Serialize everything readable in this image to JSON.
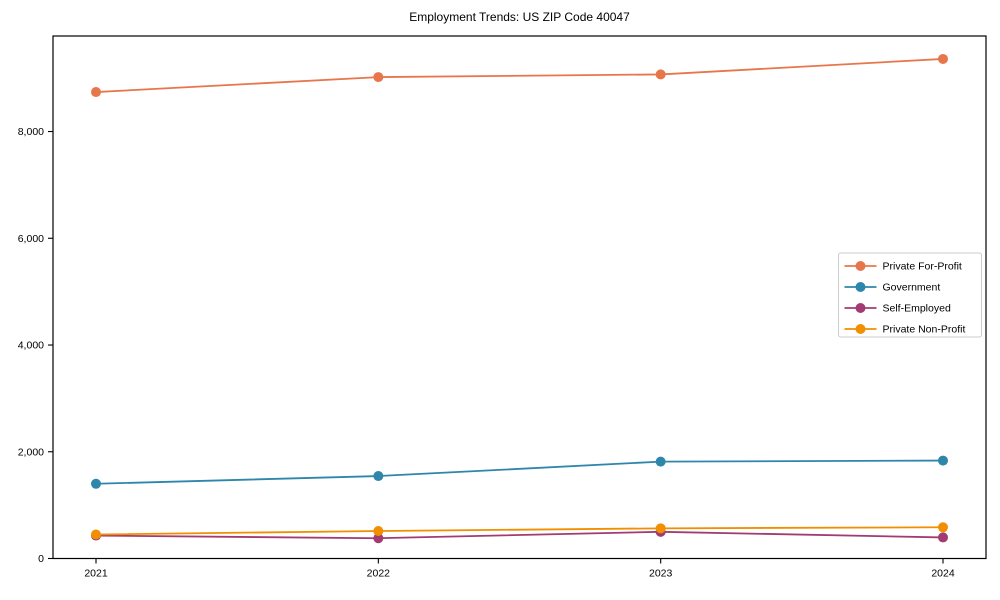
{
  "title": "Employment Trends: US ZIP Code 40047",
  "chart_data": {
    "type": "line",
    "title": "Employment Trends: US ZIP Code 40047",
    "xlabel": "",
    "ylabel": "",
    "x": [
      2021,
      2022,
      2023,
      2024
    ],
    "x_tick_labels": [
      "2021",
      "2022",
      "2023",
      "2024"
    ],
    "y_ticks": [
      {
        "value": 0,
        "label": "0"
      },
      {
        "value": 2000,
        "label": "2,000"
      },
      {
        "value": 4000,
        "label": "4,000"
      },
      {
        "value": 6000,
        "label": "6,000"
      },
      {
        "value": 8000,
        "label": "8,000"
      }
    ],
    "ylim": [
      0,
      9790
    ],
    "grid": false,
    "legend_position": "center-right",
    "legend_border_color": "#cccccc",
    "axis_color": "#000000",
    "series": [
      {
        "name": "Private For-Profit",
        "color": "#E8764B",
        "values": [
          8740,
          9020,
          9070,
          9360
        ]
      },
      {
        "name": "Government",
        "color": "#2E86AB",
        "values": [
          1400,
          1545,
          1815,
          1835
        ]
      },
      {
        "name": "Self-Employed",
        "color": "#A23B72",
        "values": [
          430,
          380,
          500,
          395
        ]
      },
      {
        "name": "Private Non-Profit",
        "color": "#F18F01",
        "values": [
          450,
          515,
          565,
          585
        ]
      }
    ]
  }
}
